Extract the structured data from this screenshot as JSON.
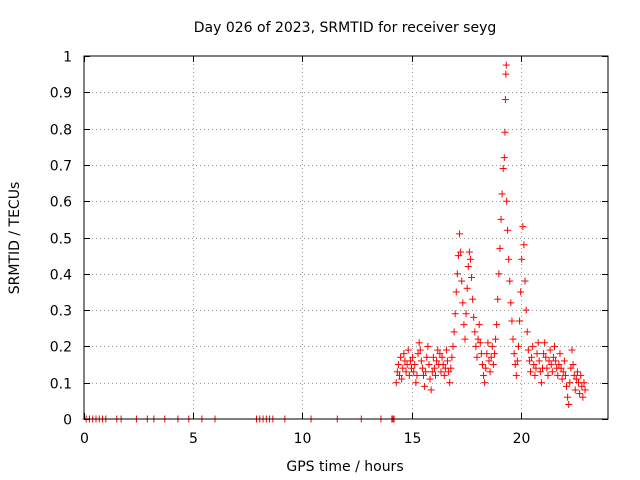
{
  "chart_data": {
    "type": "scatter",
    "title": "Day 026 of 2023, SRMTID for receiver seyg",
    "xlabel": "GPS time / hours",
    "ylabel": "SRMTID / TECUs",
    "xlim": [
      0,
      24
    ],
    "ylim": [
      0,
      1
    ],
    "xticks": [
      0,
      5,
      10,
      15,
      20
    ],
    "xtick_labels": [
      "0",
      "5",
      "10",
      "15",
      "20"
    ],
    "yticks": [
      0,
      0.1,
      0.2,
      0.3,
      0.4,
      0.5,
      0.6,
      0.7,
      0.8,
      0.9,
      1
    ],
    "ytick_labels": [
      "0",
      "0.1",
      "0.2",
      "0.3",
      "0.4",
      "0.5",
      "0.6",
      "0.7",
      "0.8",
      "0.9",
      "1"
    ],
    "grid": true,
    "marker": "+",
    "color": "#ff0000",
    "series": [
      {
        "name": "SRMTID",
        "points": [
          [
            0.1,
            0
          ],
          [
            0.25,
            0
          ],
          [
            0.4,
            0
          ],
          [
            0.55,
            0
          ],
          [
            0.7,
            0
          ],
          [
            0.85,
            0
          ],
          [
            1.0,
            0
          ],
          [
            1.5,
            0
          ],
          [
            1.7,
            0
          ],
          [
            2.4,
            0
          ],
          [
            2.9,
            0
          ],
          [
            3.2,
            0
          ],
          [
            3.7,
            0
          ],
          [
            4.3,
            0
          ],
          [
            4.8,
            0
          ],
          [
            5.4,
            0
          ],
          [
            6.0,
            0
          ],
          [
            7.9,
            0
          ],
          [
            8.05,
            0
          ],
          [
            8.2,
            0
          ],
          [
            8.35,
            0
          ],
          [
            8.5,
            0
          ],
          [
            8.65,
            0
          ],
          [
            9.2,
            0
          ],
          [
            10.4,
            0
          ],
          [
            11.6,
            0
          ],
          [
            12.7,
            0
          ],
          [
            13.6,
            0
          ],
          [
            14.1,
            0
          ],
          [
            14.15,
            0
          ],
          [
            14.2,
            0
          ],
          [
            14.3,
            0.1
          ],
          [
            14.35,
            0.13
          ],
          [
            14.4,
            0.15
          ],
          [
            14.45,
            0.12
          ],
          [
            14.5,
            0.17
          ],
          [
            14.55,
            0.11
          ],
          [
            14.6,
            0.14
          ],
          [
            14.65,
            0.18
          ],
          [
            14.7,
            0.16
          ],
          [
            14.75,
            0.13
          ],
          [
            14.8,
            0.15
          ],
          [
            14.85,
            0.19
          ],
          [
            14.9,
            0.12
          ],
          [
            14.95,
            0.16
          ],
          [
            15.0,
            0.14
          ],
          [
            15.05,
            0.17
          ],
          [
            15.1,
            0.13
          ],
          [
            15.15,
            0.15
          ],
          [
            15.2,
            0.1
          ],
          [
            15.25,
            0.12
          ],
          [
            15.3,
            0.18
          ],
          [
            15.35,
            0.21
          ],
          [
            15.4,
            0.19
          ],
          [
            15.45,
            0.16
          ],
          [
            15.5,
            0.14
          ],
          [
            15.55,
            0.12
          ],
          [
            15.6,
            0.09
          ],
          [
            15.65,
            0.13
          ],
          [
            15.7,
            0.17
          ],
          [
            15.75,
            0.2
          ],
          [
            15.8,
            0.15
          ],
          [
            15.85,
            0.11
          ],
          [
            15.9,
            0.08
          ],
          [
            15.95,
            0.13
          ],
          [
            16.0,
            0.17
          ],
          [
            16.05,
            0.14
          ],
          [
            16.1,
            0.12
          ],
          [
            16.15,
            0.16
          ],
          [
            16.2,
            0.19
          ],
          [
            16.25,
            0.15
          ],
          [
            16.3,
            0.18
          ],
          [
            16.35,
            0.13
          ],
          [
            16.4,
            0.17
          ],
          [
            16.45,
            0.15
          ],
          [
            16.5,
            0.12
          ],
          [
            16.55,
            0.14
          ],
          [
            16.6,
            0.19
          ],
          [
            16.65,
            0.16
          ],
          [
            16.7,
            0.13
          ],
          [
            16.75,
            0.1
          ],
          [
            16.8,
            0.14
          ],
          [
            16.85,
            0.17
          ],
          [
            16.9,
            0.2
          ],
          [
            16.95,
            0.24
          ],
          [
            17.0,
            0.29
          ],
          [
            17.05,
            0.35
          ],
          [
            17.1,
            0.4
          ],
          [
            17.15,
            0.45
          ],
          [
            17.2,
            0.51
          ],
          [
            17.25,
            0.46
          ],
          [
            17.3,
            0.38
          ],
          [
            17.35,
            0.32
          ],
          [
            17.4,
            0.26
          ],
          [
            17.45,
            0.22
          ],
          [
            17.5,
            0.29
          ],
          [
            17.55,
            0.36
          ],
          [
            17.6,
            0.42
          ],
          [
            17.65,
            0.46
          ],
          [
            17.7,
            0.44
          ],
          [
            17.75,
            0.39
          ],
          [
            17.8,
            0.33
          ],
          [
            17.85,
            0.28
          ],
          [
            17.9,
            0.24
          ],
          [
            17.95,
            0.2
          ],
          [
            18.0,
            0.17
          ],
          [
            18.05,
            0.22
          ],
          [
            18.1,
            0.26
          ],
          [
            18.15,
            0.21
          ],
          [
            18.2,
            0.18
          ],
          [
            18.25,
            0.15
          ],
          [
            18.3,
            0.12
          ],
          [
            18.35,
            0.1
          ],
          [
            18.4,
            0.14
          ],
          [
            18.45,
            0.18
          ],
          [
            18.5,
            0.21
          ],
          [
            18.55,
            0.16
          ],
          [
            18.6,
            0.13
          ],
          [
            18.65,
            0.17
          ],
          [
            18.7,
            0.2
          ],
          [
            18.75,
            0.15
          ],
          [
            18.8,
            0.18
          ],
          [
            18.85,
            0.22
          ],
          [
            18.9,
            0.26
          ],
          [
            18.95,
            0.33
          ],
          [
            19.0,
            0.4
          ],
          [
            19.05,
            0.47
          ],
          [
            19.1,
            0.55
          ],
          [
            19.15,
            0.62
          ],
          [
            19.2,
            0.69
          ],
          [
            19.25,
            0.72
          ],
          [
            19.28,
            0.79
          ],
          [
            19.3,
            0.88
          ],
          [
            19.32,
            0.95
          ],
          [
            19.34,
            0.975
          ],
          [
            19.36,
            0.6
          ],
          [
            19.4,
            0.52
          ],
          [
            19.45,
            0.44
          ],
          [
            19.5,
            0.38
          ],
          [
            19.55,
            0.32
          ],
          [
            19.6,
            0.27
          ],
          [
            19.65,
            0.22
          ],
          [
            19.7,
            0.18
          ],
          [
            19.75,
            0.15
          ],
          [
            19.8,
            0.12
          ],
          [
            19.85,
            0.16
          ],
          [
            19.9,
            0.2
          ],
          [
            19.95,
            0.27
          ],
          [
            20.0,
            0.35
          ],
          [
            20.05,
            0.44
          ],
          [
            20.1,
            0.53
          ],
          [
            20.15,
            0.48
          ],
          [
            20.2,
            0.38
          ],
          [
            20.25,
            0.3
          ],
          [
            20.3,
            0.24
          ],
          [
            20.35,
            0.19
          ],
          [
            20.4,
            0.16
          ],
          [
            20.45,
            0.13
          ],
          [
            20.5,
            0.17
          ],
          [
            20.55,
            0.2
          ],
          [
            20.6,
            0.15
          ],
          [
            20.65,
            0.12
          ],
          [
            20.7,
            0.14
          ],
          [
            20.75,
            0.18
          ],
          [
            20.8,
            0.21
          ],
          [
            20.85,
            0.16
          ],
          [
            20.9,
            0.13
          ],
          [
            20.95,
            0.1
          ],
          [
            21.0,
            0.14
          ],
          [
            21.05,
            0.18
          ],
          [
            21.1,
            0.21
          ],
          [
            21.15,
            0.17
          ],
          [
            21.2,
            0.14
          ],
          [
            21.25,
            0.12
          ],
          [
            21.3,
            0.16
          ],
          [
            21.35,
            0.19
          ],
          [
            21.4,
            0.15
          ],
          [
            21.45,
            0.13
          ],
          [
            21.5,
            0.17
          ],
          [
            21.55,
            0.2
          ],
          [
            21.6,
            0.16
          ],
          [
            21.65,
            0.14
          ],
          [
            21.7,
            0.12
          ],
          [
            21.75,
            0.15
          ],
          [
            21.8,
            0.18
          ],
          [
            21.85,
            0.14
          ],
          [
            21.9,
            0.11
          ],
          [
            21.95,
            0.13
          ],
          [
            22.0,
            0.16
          ],
          [
            22.05,
            0.12
          ],
          [
            22.1,
            0.09
          ],
          [
            22.15,
            0.06
          ],
          [
            22.2,
            0.04
          ],
          [
            22.25,
            0.1
          ],
          [
            22.3,
            0.14
          ],
          [
            22.35,
            0.19
          ],
          [
            22.4,
            0.15
          ],
          [
            22.45,
            0.12
          ],
          [
            22.5,
            0.08
          ],
          [
            22.55,
            0.11
          ],
          [
            22.6,
            0.13
          ],
          [
            22.65,
            0.1
          ],
          [
            22.7,
            0.07
          ],
          [
            22.75,
            0.12
          ],
          [
            22.8,
            0.09
          ],
          [
            22.85,
            0.06
          ],
          [
            22.9,
            0.1
          ],
          [
            22.95,
            0.08
          ]
        ]
      }
    ]
  }
}
